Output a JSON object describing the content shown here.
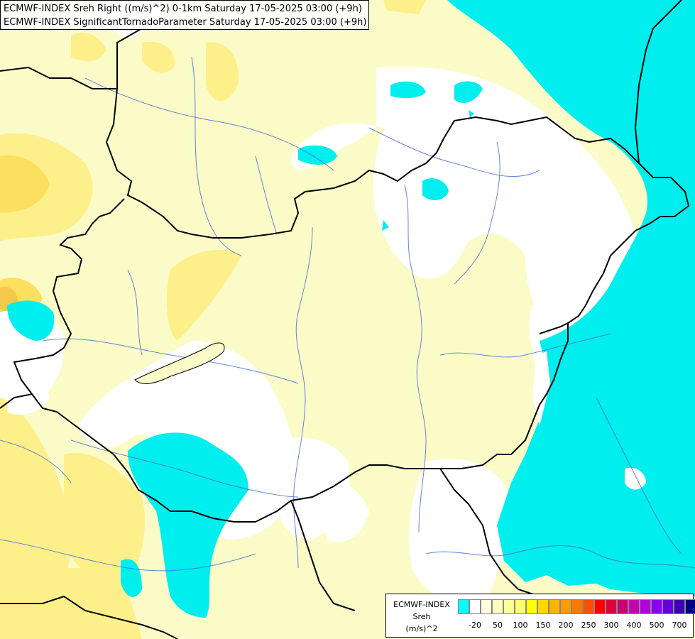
{
  "titles": {
    "line1": "ECMWF-INDEX Sreh Right ((m/s)^2) 0-1km Saturday 17-05-2025 03:00 (+9h)",
    "line2": "ECMWF-INDEX SignificantTornadoParameter Saturday 17-05-2025 03:00 (+9h)"
  },
  "legend": {
    "source": "ECMWF-INDEX",
    "variable": "Sreh",
    "unit": "(m/s)^2",
    "colors": [
      "#00ffff",
      "#ffffff",
      "#ffffe0",
      "#ffffbe",
      "#ffff9a",
      "#ffff6e",
      "#ffff00",
      "#ffd700",
      "#ffb400",
      "#ff9a00",
      "#ff7800",
      "#ff5000",
      "#ff0000",
      "#dc003c",
      "#c80078",
      "#c800b4",
      "#b400dc",
      "#8c00f0",
      "#6400dc",
      "#3c00b4",
      "#000080"
    ],
    "tick_labels": [
      "-20",
      "50",
      "100",
      "150",
      "200",
      "250",
      "300",
      "400",
      "500",
      "700"
    ],
    "tick_positions_index": [
      1,
      3,
      5,
      7,
      9,
      11,
      13,
      15,
      17,
      19
    ]
  },
  "colors": {
    "cyan": "#00eeee",
    "white": "#ffffff",
    "pale_yellow": "#fbfbc8",
    "light_yellow": "#fdfda0",
    "yellow": "#fbf380",
    "orange": "#fbd64a",
    "border": "#000000",
    "river": "#4a6fd6"
  }
}
